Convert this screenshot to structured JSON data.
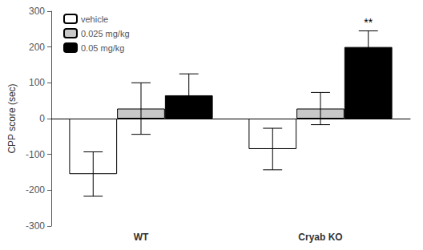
{
  "chart_data": {
    "type": "bar",
    "categories": [
      "WT",
      "Cryab KO"
    ],
    "series": [
      {
        "name": "vehicle",
        "color": "white",
        "values": [
          -155,
          -85
        ],
        "errors": [
          62,
          58
        ]
      },
      {
        "name": "0.025 mg/kg",
        "color": "#c8c8c8",
        "values": [
          28,
          28
        ],
        "errors": [
          72,
          45
        ]
      },
      {
        "name": "0.05 mg/kg",
        "color": "black",
        "values": [
          65,
          200
        ],
        "errors": [
          60,
          45
        ]
      }
    ],
    "ylabel": "CPP score (sec)",
    "ylim": [
      -300,
      300
    ],
    "yticks": [
      -300,
      -200,
      -100,
      0,
      100,
      200,
      300
    ],
    "annotations": [
      {
        "text": "**",
        "category": "Cryab KO",
        "series": "0.05 mg/kg"
      }
    ],
    "legend": "upper left",
    "grid": false
  }
}
